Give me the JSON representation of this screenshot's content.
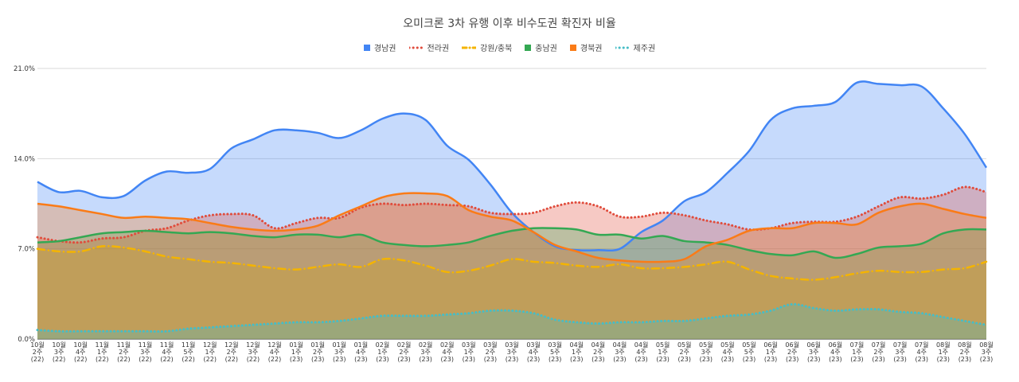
{
  "chart_data": {
    "type": "area",
    "title": "오미크론 3차 유행 이후 비수도권 확진자 비율",
    "xlabel": "",
    "ylabel": "",
    "ylim": [
      0,
      21
    ],
    "yticks": [
      0,
      7,
      14,
      21
    ],
    "ytick_labels": [
      "0.0%",
      "7.0%",
      "14.0%",
      "21.0%"
    ],
    "grid": true,
    "legend_position": "top-center",
    "categories": [
      [
        "10월",
        "2주",
        "(22)"
      ],
      [
        "10월",
        "3주",
        "(22)"
      ],
      [
        "10월",
        "4주",
        "(22)"
      ],
      [
        "11월",
        "1주",
        "(22)"
      ],
      [
        "11월",
        "2주",
        "(22)"
      ],
      [
        "11월",
        "3주",
        "(22)"
      ],
      [
        "11월",
        "4주",
        "(22)"
      ],
      [
        "11월",
        "5주",
        "(22)"
      ],
      [
        "12월",
        "1주",
        "(22)"
      ],
      [
        "12월",
        "2주",
        "(22)"
      ],
      [
        "12월",
        "3주",
        "(22)"
      ],
      [
        "12월",
        "4주",
        "(22)"
      ],
      [
        "01월",
        "1주",
        "(23)"
      ],
      [
        "01월",
        "2주",
        "(23)"
      ],
      [
        "01월",
        "3주",
        "(23)"
      ],
      [
        "01월",
        "4주",
        "(23)"
      ],
      [
        "02월",
        "1주",
        "(23)"
      ],
      [
        "02월",
        "2주",
        "(23)"
      ],
      [
        "02월",
        "3주",
        "(23)"
      ],
      [
        "02월",
        "4주",
        "(23)"
      ],
      [
        "03월",
        "1주",
        "(23)"
      ],
      [
        "03월",
        "2주",
        "(23)"
      ],
      [
        "03월",
        "3주",
        "(23)"
      ],
      [
        "03월",
        "4주",
        "(23)"
      ],
      [
        "03월",
        "5주",
        "(23)"
      ],
      [
        "04월",
        "1주",
        "(23)"
      ],
      [
        "04월",
        "2주",
        "(23)"
      ],
      [
        "04월",
        "3주",
        "(23)"
      ],
      [
        "04월",
        "4주",
        "(23)"
      ],
      [
        "05월",
        "1주",
        "(23)"
      ],
      [
        "05월",
        "2주",
        "(23)"
      ],
      [
        "05월",
        "3주",
        "(23)"
      ],
      [
        "05월",
        "4주",
        "(23)"
      ],
      [
        "05월",
        "5주",
        "(23)"
      ],
      [
        "06월",
        "1주",
        "(23)"
      ],
      [
        "06월",
        "2주",
        "(23)"
      ],
      [
        "06월",
        "3주",
        "(23)"
      ],
      [
        "06월",
        "4주",
        "(23)"
      ],
      [
        "07월",
        "1주",
        "(23)"
      ],
      [
        "07월",
        "2주",
        "(23)"
      ],
      [
        "07월",
        "3주",
        "(23)"
      ],
      [
        "07월",
        "4주",
        "(23)"
      ],
      [
        "08월",
        "1주",
        "(23)"
      ],
      [
        "08월",
        "2주",
        "(23)"
      ],
      [
        "08월",
        "3주",
        "(23)"
      ]
    ],
    "series": [
      {
        "name": "경남권",
        "color": "#4285f4",
        "dash": "solid",
        "values": [
          12.2,
          11.4,
          11.5,
          11.0,
          11.1,
          12.3,
          13.0,
          12.9,
          13.2,
          14.8,
          15.5,
          16.2,
          16.2,
          16.0,
          15.6,
          16.2,
          17.1,
          17.5,
          17.0,
          15.0,
          13.9,
          12.0,
          9.8,
          8.3,
          7.2,
          6.9,
          6.9,
          7.0,
          8.3,
          9.2,
          10.7,
          11.4,
          12.9,
          14.6,
          17.0,
          17.9,
          18.1,
          18.4,
          19.9,
          19.8,
          19.7,
          19.6,
          17.9,
          15.9,
          13.3
        ]
      },
      {
        "name": "전라권",
        "color": "#e04c3c",
        "dash": "dotted",
        "values": [
          7.9,
          7.6,
          7.5,
          7.8,
          7.9,
          8.4,
          8.6,
          9.2,
          9.6,
          9.7,
          9.6,
          8.6,
          9.0,
          9.4,
          9.4,
          10.2,
          10.5,
          10.4,
          10.5,
          10.4,
          10.3,
          9.8,
          9.7,
          9.8,
          10.3,
          10.6,
          10.3,
          9.5,
          9.5,
          9.8,
          9.6,
          9.2,
          8.9,
          8.5,
          8.6,
          9.0,
          9.1,
          9.1,
          9.5,
          10.3,
          11.0,
          10.9,
          11.2,
          11.8,
          11.4
        ]
      },
      {
        "name": "강원/충북",
        "color": "#f4b400",
        "dash": "dashdot",
        "values": [
          7.0,
          6.8,
          6.8,
          7.2,
          7.1,
          6.8,
          6.4,
          6.2,
          6.0,
          5.9,
          5.7,
          5.5,
          5.4,
          5.6,
          5.8,
          5.6,
          6.2,
          6.1,
          5.7,
          5.2,
          5.3,
          5.7,
          6.2,
          6.0,
          5.9,
          5.7,
          5.6,
          5.8,
          5.5,
          5.5,
          5.6,
          5.8,
          6.0,
          5.4,
          4.9,
          4.7,
          4.6,
          4.8,
          5.1,
          5.3,
          5.2,
          5.2,
          5.4,
          5.5,
          6.0
        ]
      },
      {
        "name": "충남권",
        "color": "#34a853",
        "dash": "solid",
        "values": [
          7.5,
          7.6,
          7.9,
          8.2,
          8.3,
          8.4,
          8.3,
          8.2,
          8.3,
          8.2,
          8.0,
          7.9,
          8.1,
          8.1,
          7.9,
          8.1,
          7.5,
          7.3,
          7.2,
          7.3,
          7.5,
          8.0,
          8.4,
          8.6,
          8.6,
          8.5,
          8.1,
          8.1,
          7.8,
          8.0,
          7.6,
          7.5,
          7.3,
          6.9,
          6.6,
          6.5,
          6.8,
          6.3,
          6.6,
          7.1,
          7.2,
          7.4,
          8.2,
          8.5,
          8.5
        ]
      },
      {
        "name": "경북권",
        "color": "#fa7b17",
        "dash": "solid",
        "values": [
          10.5,
          10.3,
          10.0,
          9.7,
          9.4,
          9.5,
          9.4,
          9.3,
          9.0,
          8.7,
          8.5,
          8.4,
          8.5,
          8.8,
          9.6,
          10.3,
          11.0,
          11.3,
          11.3,
          11.1,
          10.0,
          9.5,
          9.2,
          8.3,
          7.3,
          6.8,
          6.3,
          6.1,
          6.0,
          6.0,
          6.2,
          7.2,
          7.7,
          8.4,
          8.6,
          8.6,
          9.0,
          9.0,
          8.9,
          9.8,
          10.3,
          10.5,
          10.1,
          9.7,
          9.4
        ]
      },
      {
        "name": "제주권",
        "color": "#46bdc6",
        "dash": "dotted",
        "values": [
          0.7,
          0.6,
          0.6,
          0.6,
          0.6,
          0.6,
          0.6,
          0.8,
          0.9,
          1.0,
          1.1,
          1.2,
          1.3,
          1.3,
          1.4,
          1.6,
          1.8,
          1.8,
          1.8,
          1.9,
          2.0,
          2.2,
          2.2,
          2.0,
          1.5,
          1.3,
          1.2,
          1.3,
          1.3,
          1.4,
          1.4,
          1.6,
          1.8,
          1.9,
          2.2,
          2.7,
          2.4,
          2.2,
          2.3,
          2.3,
          2.1,
          2.0,
          1.7,
          1.4,
          1.1
        ]
      }
    ]
  }
}
